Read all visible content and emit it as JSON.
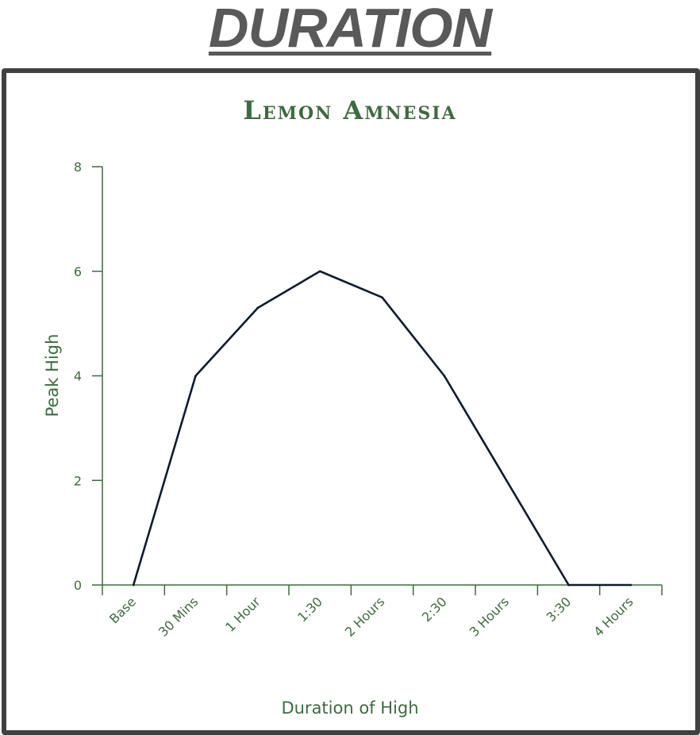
{
  "heading": "DURATION",
  "chart_data": {
    "type": "line",
    "title": "Lemon Amnesia",
    "xlabel": "Duration of High",
    "ylabel": "Peak High",
    "categories": [
      "Base",
      "30 Mins",
      "1 Hour",
      "1:30",
      "2 Hours",
      "2:30",
      "3 Hours",
      "3:30",
      "4 Hours"
    ],
    "series": [
      {
        "values": [
          0,
          4,
          5.3,
          6,
          5.5,
          4,
          2,
          0,
          0
        ]
      }
    ],
    "ylim": [
      0,
      8
    ],
    "yticks": [
      0,
      2,
      4,
      6,
      8
    ],
    "grid": false,
    "colors": {
      "text": "#3d6b3e",
      "axis": "#3d6b3e",
      "line": "#0f1b2d",
      "frame": "#404040"
    }
  }
}
